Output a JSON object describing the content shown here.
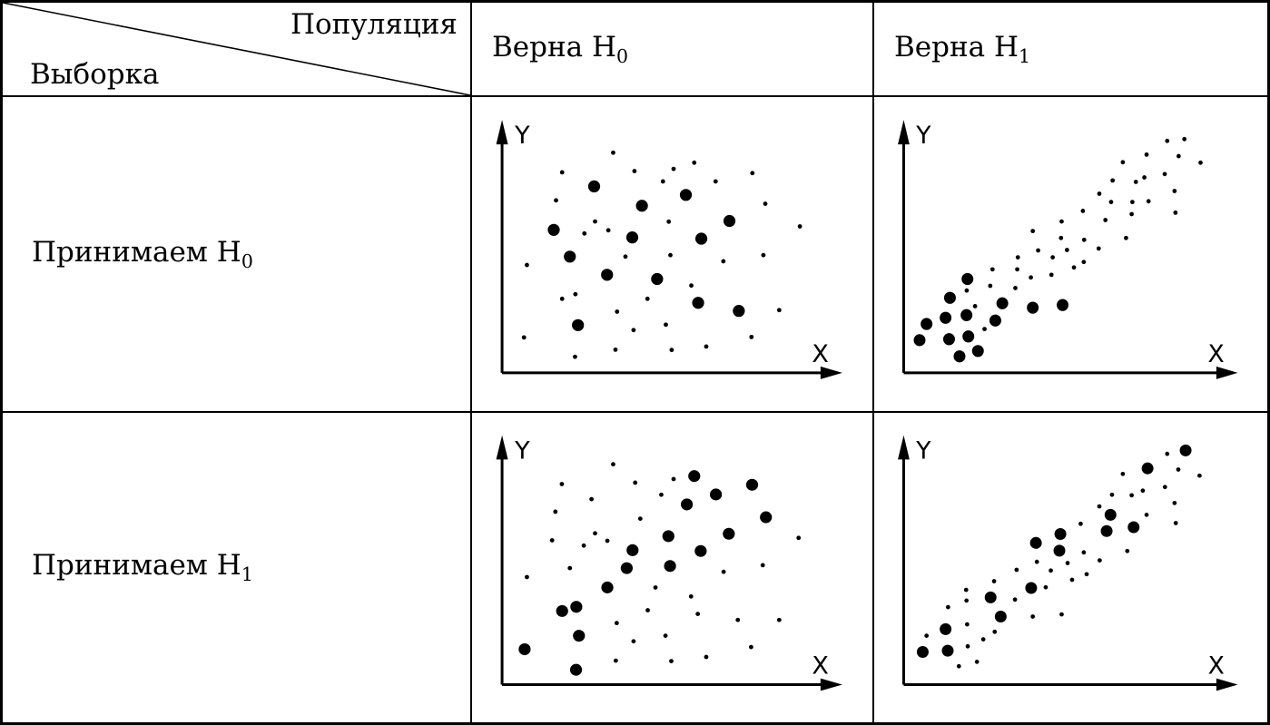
{
  "colors": {
    "ink": "#000000",
    "background": "#ffffff"
  },
  "table": {
    "corner": {
      "top_label": "Популяция",
      "bottom_label": "Выборка"
    },
    "col_headers": [
      {
        "label": "Верна H",
        "sub": "0"
      },
      {
        "label": "Верна H",
        "sub": "1"
      }
    ],
    "row_headers": [
      {
        "label": "Принимаем H",
        "sub": "0"
      },
      {
        "label": "Принимаем H",
        "sub": "1"
      }
    ]
  },
  "chart_data": [
    {
      "type": "scatter",
      "row_label": "Принимаем H0",
      "col_label": "Верна H0",
      "xlabel": "X",
      "ylabel": "Y",
      "xlim": [
        0,
        100
      ],
      "ylim": [
        0,
        100
      ],
      "grid": false,
      "series": [
        {
          "name": "small-dots",
          "marker": "small",
          "points": [
            [
              34.4,
              89.6
            ],
            [
              59.5,
              85.5
            ],
            [
              53.1,
              83.0
            ],
            [
              18.6,
              81.6
            ],
            [
              41.0,
              82.1
            ],
            [
              49.8,
              77.9
            ],
            [
              66.1,
              77.9
            ],
            [
              77.5,
              81.3
            ],
            [
              16.7,
              70.2
            ],
            [
              81.5,
              68.8
            ],
            [
              28.8,
              61.6
            ],
            [
              32.9,
              58.0
            ],
            [
              25.5,
              56.7
            ],
            [
              92.2,
              59.6
            ],
            [
              51.6,
              61.5
            ],
            [
              38.2,
              47.3
            ],
            [
              52.1,
              47.9
            ],
            [
              68.5,
              45.4
            ],
            [
              80.9,
              47.9
            ],
            [
              7.7,
              43.9
            ],
            [
              18.6,
              30.1
            ],
            [
              22.7,
              32.0
            ],
            [
              45.0,
              30.1
            ],
            [
              58.6,
              35.5
            ],
            [
              35.6,
              24.9
            ],
            [
              85.8,
              25.5
            ],
            [
              40.7,
              17.4
            ],
            [
              50.7,
              19.6
            ],
            [
              6.8,
              14.4
            ],
            [
              77.2,
              14.6
            ],
            [
              35.1,
              9.4
            ],
            [
              52.5,
              9.3
            ],
            [
              63.2,
              10.7
            ],
            [
              22.6,
              6.5
            ]
          ]
        },
        {
          "name": "large-dots",
          "marker": "large",
          "points": [
            [
              28.5,
              75.9
            ],
            [
              56.9,
              72.4
            ],
            [
              43.3,
              68.0
            ],
            [
              70.4,
              61.8
            ],
            [
              16.0,
              58.2
            ],
            [
              40.3,
              55.1
            ],
            [
              61.7,
              54.6
            ],
            [
              21.0,
              47.3
            ],
            [
              32.5,
              39.9
            ],
            [
              48.0,
              38.2
            ],
            [
              60.7,
              28.5
            ],
            [
              73.3,
              25.2
            ],
            [
              23.5,
              19.4
            ]
          ]
        }
      ]
    },
    {
      "type": "scatter",
      "row_label": "Принимаем H0",
      "col_label": "Верна H1",
      "xlabel": "X",
      "ylabel": "Y",
      "xlim": [
        0,
        100
      ],
      "ylim": [
        0,
        100
      ],
      "grid": false,
      "series": [
        {
          "name": "small-dots",
          "marker": "small",
          "points": [
            [
              19.9,
              33.5
            ],
            [
              22.5,
              27.1
            ],
            [
              27.3,
              35.4
            ],
            [
              28.0,
              42.1
            ],
            [
              25.5,
              17.8
            ],
            [
              35.2,
              34.5
            ],
            [
              35.8,
              42.1
            ],
            [
              36.0,
              47.0
            ],
            [
              40.1,
              38.8
            ],
            [
              42.4,
              49.8
            ],
            [
              40.7,
              57.7
            ],
            [
              46.6,
              39.9
            ],
            [
              47.0,
              47.0
            ],
            [
              49.6,
              54.9
            ],
            [
              49.8,
              61.6
            ],
            [
              51.5,
              50.0
            ],
            [
              53.7,
              42.9
            ],
            [
              56.8,
              45.1
            ],
            [
              56.5,
              65.9
            ],
            [
              56.9,
              54.1
            ],
            [
              61.5,
              50.6
            ],
            [
              61.7,
              72.9
            ],
            [
              63.6,
              62.2
            ],
            [
              65.4,
              69.5
            ],
            [
              65.9,
              78.3
            ],
            [
              69.1,
              85.7
            ],
            [
              70.1,
              54.9
            ],
            [
              71.9,
              64.6
            ],
            [
              72.1,
              69.5
            ],
            [
              73.2,
              77.7
            ],
            [
              75.9,
              79.5
            ],
            [
              76.6,
              88.8
            ],
            [
              77.2,
              69.8
            ],
            [
              82.3,
              80.9
            ],
            [
              83.1,
              94.4
            ],
            [
              85.4,
              74.0
            ],
            [
              85.7,
              65.2
            ],
            [
              86.7,
              88.2
            ],
            [
              88.5,
              95.1
            ],
            [
              93.6,
              85.5
            ]
          ]
        },
        {
          "name": "large-dots",
          "marker": "large",
          "points": [
            [
              7.2,
              19.9
            ],
            [
              5.0,
              13.3
            ],
            [
              14.6,
              30.5
            ],
            [
              13.2,
              22.4
            ],
            [
              14.3,
              13.7
            ],
            [
              17.6,
              6.7
            ],
            [
              20.1,
              38.2
            ],
            [
              19.8,
              23.5
            ],
            [
              20.4,
              14.8
            ],
            [
              23.4,
              8.9
            ],
            [
              28.9,
              21.3
            ],
            [
              31.1,
              28.3
            ],
            [
              40.7,
              26.5
            ],
            [
              50.1,
              27.6
            ]
          ]
        }
      ]
    },
    {
      "type": "scatter",
      "row_label": "Принимаем H1",
      "col_label": "Верна H0",
      "xlabel": "X",
      "ylabel": "Y",
      "xlim": [
        0,
        100
      ],
      "ylim": [
        0,
        100
      ],
      "grid": false,
      "series": [
        {
          "name": "small-dots",
          "marker": "small",
          "points": [
            [
              34.4,
              91.0
            ],
            [
              41.2,
              83.4
            ],
            [
              53.1,
              84.9
            ],
            [
              49.3,
              78.4
            ],
            [
              27.7,
              76.6
            ],
            [
              18.5,
              82.8
            ],
            [
              16.5,
              71.4
            ],
            [
              42.8,
              68.5
            ],
            [
              28.8,
              62.5
            ],
            [
              32.6,
              59.4
            ],
            [
              25.3,
              57.4
            ],
            [
              91.8,
              60.6
            ],
            [
              15.5,
              59.6
            ],
            [
              21.0,
              48.1
            ],
            [
              7.7,
              44.4
            ],
            [
              47.5,
              40.1
            ],
            [
              58.5,
              36.4
            ],
            [
              60.6,
              29.2
            ],
            [
              45.1,
              30.7
            ],
            [
              35.5,
              25.4
            ],
            [
              73.0,
              26.7
            ],
            [
              80.7,
              49.3
            ],
            [
              68.6,
              46.6
            ],
            [
              85.8,
              26.7
            ],
            [
              40.7,
              17.9
            ],
            [
              50.6,
              20.2
            ],
            [
              77.1,
              15.5
            ],
            [
              35.2,
              9.9
            ],
            [
              52.4,
              9.7
            ],
            [
              63.2,
              11.4
            ]
          ]
        },
        {
          "name": "large-dots",
          "marker": "large",
          "points": [
            [
              7.0,
              14.6
            ],
            [
              22.9,
              6.1
            ],
            [
              23.8,
              20.2
            ],
            [
              18.6,
              30.4
            ],
            [
              23.0,
              32.1
            ],
            [
              32.6,
              40.1
            ],
            [
              38.6,
              48.1
            ],
            [
              40.4,
              55.5
            ],
            [
              52.0,
              49.0
            ],
            [
              51.5,
              61.3
            ],
            [
              61.5,
              55.2
            ],
            [
              57.2,
              74.4
            ],
            [
              59.5,
              86.1
            ],
            [
              66.2,
              78.5
            ],
            [
              70.2,
              62.3
            ],
            [
              77.4,
              82.5
            ],
            [
              81.7,
              69.1
            ]
          ]
        }
      ]
    },
    {
      "type": "scatter",
      "row_label": "Принимаем H1",
      "col_label": "Верна H1",
      "xlabel": "X",
      "ylabel": "Y",
      "xlim": [
        0,
        100
      ],
      "ylim": [
        0,
        100
      ],
      "grid": false,
      "series": [
        {
          "name": "small-dots",
          "marker": "small",
          "points": [
            [
              7.2,
              20.2
            ],
            [
              17.4,
              7.6
            ],
            [
              20.2,
              15.8
            ],
            [
              23.1,
              9.4
            ],
            [
              20.0,
              24.9
            ],
            [
              19.8,
              34.7
            ],
            [
              19.7,
              39.1
            ],
            [
              14.0,
              32.0
            ],
            [
              25.1,
              18.7
            ],
            [
              28.7,
              21.8
            ],
            [
              28.5,
              42.7
            ],
            [
              35.1,
              35.1
            ],
            [
              35.6,
              47.4
            ],
            [
              40.7,
              28.1
            ],
            [
              42.0,
              50.7
            ],
            [
              44.8,
              40.2
            ],
            [
              46.4,
              47.1
            ],
            [
              49.8,
              29.0
            ],
            [
              51.7,
              50.2
            ],
            [
              53.1,
              43.3
            ],
            [
              55.8,
              66.4
            ],
            [
              56.8,
              54.6
            ],
            [
              57.7,
              45.6
            ],
            [
              61.7,
              73.6
            ],
            [
              61.8,
              51.3
            ],
            [
              65.7,
              78.4
            ],
            [
              69.1,
              87.0
            ],
            [
              70.5,
              55.2
            ],
            [
              71.9,
              78.2
            ],
            [
              75.4,
              80.1
            ],
            [
              76.6,
              70.1
            ],
            [
              82.4,
              81.6
            ],
            [
              83.1,
              95.3
            ],
            [
              85.4,
              75.0
            ],
            [
              85.8,
              66.7
            ],
            [
              86.6,
              88.8
            ],
            [
              93.3,
              86.3
            ]
          ]
        },
        {
          "name": "large-dots",
          "marker": "large",
          "points": [
            [
              6.0,
              13.5
            ],
            [
              13.2,
              22.9
            ],
            [
              13.9,
              14.0
            ],
            [
              27.4,
              36.0
            ],
            [
              30.6,
              28.1
            ],
            [
              40.2,
              39.9
            ],
            [
              41.7,
              58.5
            ],
            [
              49.4,
              62.2
            ],
            [
              49.1,
              55.3
            ],
            [
              64.0,
              63.4
            ],
            [
              65.2,
              70.1
            ],
            [
              72.5,
              65.0
            ],
            [
              76.9,
              89.3
            ],
            [
              88.9,
              96.7
            ]
          ]
        }
      ]
    }
  ]
}
